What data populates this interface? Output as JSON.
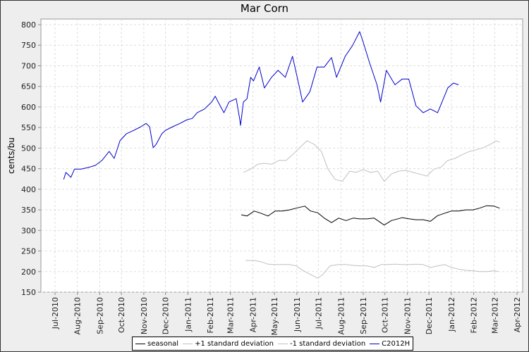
{
  "chart_data": {
    "type": "line",
    "title": "Mar Corn",
    "xlabel": "",
    "ylabel": "cents/bu",
    "ylim": [
      150,
      800
    ],
    "yticks": [
      150,
      200,
      250,
      300,
      350,
      400,
      450,
      500,
      550,
      600,
      650,
      700,
      750,
      800
    ],
    "xlim": [
      "2010-07-01",
      "2012-04-01"
    ],
    "xticks": [
      "Jul-2010",
      "Aug-2010",
      "Sep-2010",
      "Oct-2010",
      "Nov-2010",
      "Dec-2010",
      "Jan-2011",
      "Feb-2011",
      "Mar-2011",
      "Apr-2011",
      "May-2011",
      "Jun-2011",
      "Jul-2011",
      "Aug-2011",
      "Sep-2011",
      "Oct-2011",
      "Nov-2011",
      "Dec-2011",
      "Jan-2012",
      "Feb-2012",
      "Mar-2012",
      "Apr-2012"
    ],
    "xtick_dates": [
      "2010-07-01",
      "2010-08-01",
      "2010-09-01",
      "2010-10-01",
      "2010-11-01",
      "2010-12-01",
      "2011-01-01",
      "2011-02-01",
      "2011-03-01",
      "2011-04-01",
      "2011-05-01",
      "2011-06-01",
      "2011-07-01",
      "2011-08-01",
      "2011-09-01",
      "2011-10-01",
      "2011-11-01",
      "2011-12-01",
      "2012-01-01",
      "2012-02-01",
      "2012-03-01",
      "2012-04-01"
    ],
    "grid": true,
    "legend_position": "bottom",
    "series": [
      {
        "name": "seasonal",
        "color": "#000000",
        "x": [
          "2011-03-16",
          "2011-03-24",
          "2011-04-03",
          "2011-04-12",
          "2011-04-22",
          "2011-05-02",
          "2011-05-12",
          "2011-05-22",
          "2011-05-31",
          "2011-06-12",
          "2011-06-20",
          "2011-06-30",
          "2011-07-09",
          "2011-07-19",
          "2011-07-29",
          "2011-08-08",
          "2011-08-18",
          "2011-08-27",
          "2011-09-06",
          "2011-09-16",
          "2011-09-30",
          "2011-10-10",
          "2011-10-25",
          "2011-11-04",
          "2011-11-13",
          "2011-11-23",
          "2011-12-03",
          "2011-12-13",
          "2011-12-23",
          "2012-01-01",
          "2012-01-11",
          "2012-01-21",
          "2012-01-31",
          "2012-02-09",
          "2012-02-19",
          "2012-02-29",
          "2012-03-08"
        ],
        "y": [
          338,
          335,
          347,
          342,
          335,
          347,
          347,
          350,
          354,
          359,
          347,
          343,
          330,
          319,
          330,
          324,
          330,
          328,
          328,
          330,
          313,
          324,
          331,
          328,
          326,
          326,
          322,
          336,
          342,
          347,
          347,
          350,
          350,
          354,
          360,
          359,
          354
        ]
      },
      {
        "name": "+1 standard deviation",
        "color": "#c0c0c0",
        "x": [
          "2011-03-19",
          "2011-03-29",
          "2011-04-08",
          "2011-04-17",
          "2011-04-27",
          "2011-05-07",
          "2011-05-17",
          "2011-05-26",
          "2011-06-05",
          "2011-06-15",
          "2011-06-25",
          "2011-07-05",
          "2011-07-14",
          "2011-07-24",
          "2011-08-03",
          "2011-08-13",
          "2011-08-22",
          "2011-09-01",
          "2011-09-11",
          "2011-09-21",
          "2011-09-30",
          "2011-10-10",
          "2011-10-20",
          "2011-10-30",
          "2011-11-09",
          "2011-11-18",
          "2011-11-28",
          "2011-12-08",
          "2011-12-18",
          "2011-12-27",
          "2012-01-06",
          "2012-01-16",
          "2012-01-26",
          "2012-02-05",
          "2012-02-14",
          "2012-02-24",
          "2012-03-03",
          "2012-03-08"
        ],
        "y": [
          441,
          449,
          461,
          463,
          461,
          470,
          470,
          484,
          501,
          518,
          509,
          492,
          449,
          424,
          419,
          444,
          441,
          448,
          441,
          444,
          419,
          437,
          444,
          446,
          441,
          437,
          432,
          449,
          454,
          470,
          475,
          484,
          492,
          496,
          501,
          509,
          518,
          514
        ]
      },
      {
        "name": "-1 standard deviation",
        "color": "#c0c0c0",
        "x": [
          "2011-03-22",
          "2011-04-03",
          "2011-04-12",
          "2011-04-22",
          "2011-05-02",
          "2011-05-12",
          "2011-05-22",
          "2011-05-31",
          "2011-06-10",
          "2011-06-20",
          "2011-06-30",
          "2011-07-07",
          "2011-07-17",
          "2011-07-29",
          "2011-08-08",
          "2011-08-18",
          "2011-08-27",
          "2011-09-06",
          "2011-09-16",
          "2011-09-26",
          "2011-10-05",
          "2011-10-15",
          "2011-10-25",
          "2011-11-04",
          "2011-11-13",
          "2011-11-23",
          "2011-12-03",
          "2011-12-13",
          "2011-12-23",
          "2012-01-01",
          "2012-01-11",
          "2012-01-21",
          "2012-01-31",
          "2012-02-09",
          "2012-02-19",
          "2012-02-29",
          "2012-03-06"
        ],
        "y": [
          227,
          227,
          224,
          218,
          217,
          217,
          217,
          214,
          202,
          193,
          184,
          193,
          214,
          217,
          217,
          215,
          214,
          214,
          210,
          217,
          217,
          218,
          217,
          217,
          218,
          217,
          210,
          214,
          217,
          210,
          206,
          203,
          202,
          200,
          200,
          202,
          200
        ]
      },
      {
        "name": "C2012H",
        "color": "#0000cc",
        "x": [
          "2010-07-13",
          "2010-07-16",
          "2010-07-23",
          "2010-07-28",
          "2010-08-06",
          "2010-08-16",
          "2010-08-26",
          "2010-09-04",
          "2010-09-14",
          "2010-09-21",
          "2010-09-29",
          "2010-10-08",
          "2010-10-18",
          "2010-10-28",
          "2010-11-04",
          "2010-11-09",
          "2010-11-14",
          "2010-11-18",
          "2010-11-26",
          "2010-12-01",
          "2010-12-11",
          "2010-12-21",
          "2010-12-31",
          "2011-01-07",
          "2011-01-14",
          "2011-01-24",
          "2011-02-03",
          "2011-02-08",
          "2011-02-12",
          "2011-02-20",
          "2011-02-27",
          "2011-03-09",
          "2011-03-14",
          "2011-03-15",
          "2011-03-19",
          "2011-03-24",
          "2011-03-29",
          "2011-04-02",
          "2011-04-10",
          "2011-04-17",
          "2011-04-27",
          "2011-05-06",
          "2011-05-16",
          "2011-05-26",
          "2011-06-02",
          "2011-06-09",
          "2011-06-19",
          "2011-06-29",
          "2011-07-09",
          "2011-07-19",
          "2011-07-26",
          "2011-08-07",
          "2011-08-17",
          "2011-08-27",
          "2011-09-01",
          "2011-09-10",
          "2011-09-20",
          "2011-09-25",
          "2011-10-03",
          "2011-10-15",
          "2011-10-25",
          "2011-11-03",
          "2011-11-13",
          "2011-11-23",
          "2011-12-03",
          "2011-12-13",
          "2011-12-18",
          "2011-12-27",
          "2012-01-04",
          "2012-01-11"
        ],
        "y": [
          424,
          441,
          429,
          449,
          449,
          453,
          458,
          470,
          492,
          475,
          518,
          535,
          543,
          552,
          560,
          552,
          501,
          509,
          535,
          543,
          552,
          560,
          569,
          572,
          586,
          595,
          612,
          626,
          612,
          586,
          612,
          620,
          569,
          555,
          612,
          620,
          672,
          663,
          697,
          646,
          672,
          689,
          672,
          723,
          668,
          612,
          637,
          697,
          697,
          720,
          672,
          723,
          749,
          783,
          757,
          706,
          654,
          612,
          689,
          654,
          668,
          668,
          603,
          586,
          595,
          586,
          607,
          646,
          658,
          654
        ]
      }
    ]
  }
}
